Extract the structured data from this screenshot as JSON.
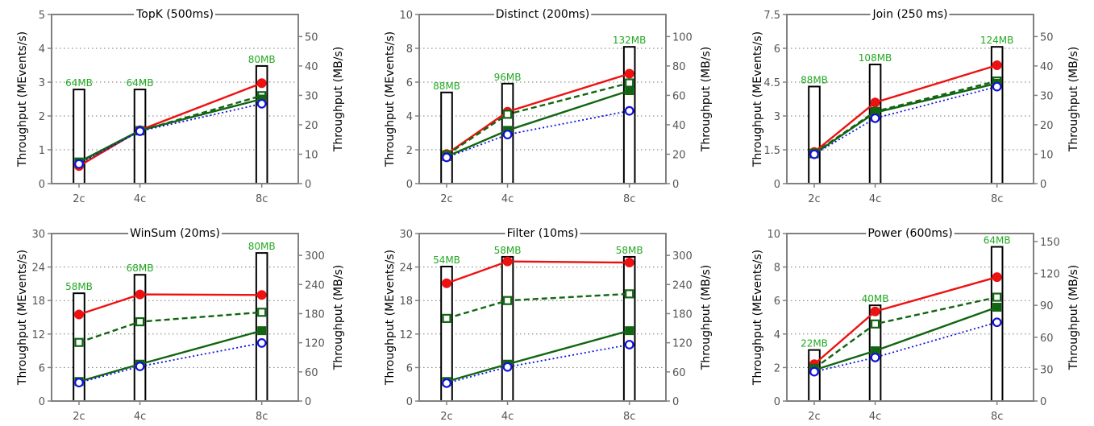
{
  "chart_data": [
    {
      "type": "bar+line",
      "title": "TopK (500ms)",
      "categories": [
        "2c",
        "4c",
        "8c"
      ],
      "x": [
        2,
        4,
        8
      ],
      "ylabel": "Throughput (MEvents/s)",
      "y2label": "Throughput (MB/s)",
      "ylim": [
        0,
        5
      ],
      "yticks": [
        0,
        1,
        2,
        3,
        4,
        5
      ],
      "y2lim": [
        0,
        57.5
      ],
      "y2ticks": [
        0,
        10,
        20,
        30,
        40,
        50
      ],
      "bars": [
        32,
        32,
        40
      ],
      "bar_labels": [
        "64MB",
        "64MB",
        "80MB"
      ],
      "series": [
        {
          "values": [
            0.52,
            1.58,
            2.97
          ],
          "color": "#ee1111",
          "marker": "filled-circle",
          "line": "solid"
        },
        {
          "values": [
            0.62,
            1.56,
            2.6
          ],
          "color": "#116611",
          "marker": "open-square",
          "line": "dashed"
        },
        {
          "values": [
            0.64,
            1.57,
            2.5
          ],
          "color": "#116611",
          "marker": "filled-square",
          "line": "solid"
        },
        {
          "values": [
            0.58,
            1.55,
            2.36
          ],
          "color": "#1111dd",
          "marker": "open-circle",
          "line": "dotted"
        }
      ]
    },
    {
      "type": "bar+line",
      "title": "Distinct (200ms)",
      "categories": [
        "2c",
        "4c",
        "8c"
      ],
      "x": [
        2,
        4,
        8
      ],
      "ylabel": "Throughput (MEvents/s)",
      "y2label": "Throughput (MB/s)",
      "ylim": [
        0,
        10
      ],
      "yticks": [
        0,
        2,
        4,
        6,
        8,
        10
      ],
      "y2lim": [
        0,
        115
      ],
      "y2ticks": [
        0,
        20,
        40,
        60,
        80,
        100
      ],
      "bars": [
        62,
        68,
        93
      ],
      "bar_labels": [
        "88MB",
        "96MB",
        "132MB"
      ],
      "series": [
        {
          "values": [
            1.75,
            4.25,
            6.5
          ],
          "color": "#ee1111",
          "marker": "filled-circle",
          "line": "solid"
        },
        {
          "values": [
            1.7,
            4.1,
            5.95
          ],
          "color": "#116611",
          "marker": "open-square",
          "line": "dashed"
        },
        {
          "values": [
            1.6,
            3.15,
            5.5
          ],
          "color": "#116611",
          "marker": "filled-square",
          "line": "solid"
        },
        {
          "values": [
            1.55,
            2.9,
            4.3
          ],
          "color": "#1111dd",
          "marker": "open-circle",
          "line": "dotted"
        }
      ]
    },
    {
      "type": "bar+line",
      "title": "Join (250 ms)",
      "categories": [
        "2c",
        "4c",
        "8c"
      ],
      "x": [
        2,
        4,
        8
      ],
      "ylabel": "Throughput (MEvents/s)",
      "y2label": "Throughput (MB/s)",
      "ylim": [
        0,
        7.5
      ],
      "yticks": [
        "0",
        "1.5",
        "3",
        "4.5",
        "6",
        "7.5"
      ],
      "y2lim": [
        0,
        57.5
      ],
      "y2ticks": [
        0,
        10,
        20,
        30,
        40,
        50
      ],
      "bars": [
        33,
        40.5,
        46.5
      ],
      "bar_labels": [
        "88MB",
        "108MB",
        "124MB"
      ],
      "series": [
        {
          "values": [
            1.4,
            3.6,
            5.25
          ],
          "color": "#ee1111",
          "marker": "filled-circle",
          "line": "solid"
        },
        {
          "values": [
            1.35,
            3.2,
            4.55
          ],
          "color": "#116611",
          "marker": "open-square",
          "line": "dashed"
        },
        {
          "values": [
            1.32,
            3.15,
            4.45
          ],
          "color": "#116611",
          "marker": "filled-square",
          "line": "solid"
        },
        {
          "values": [
            1.3,
            2.9,
            4.3
          ],
          "color": "#1111dd",
          "marker": "open-circle",
          "line": "dotted"
        }
      ]
    },
    {
      "type": "bar+line",
      "title": "WinSum (20ms)",
      "categories": [
        "2c",
        "4c",
        "8c"
      ],
      "x": [
        2,
        4,
        8
      ],
      "ylabel": "Throughput (MEvents/s)",
      "y2label": "Throughput (MB/s)",
      "ylim": [
        0,
        30
      ],
      "yticks": [
        0,
        6,
        12,
        18,
        24,
        30
      ],
      "y2lim": [
        0,
        345
      ],
      "y2ticks": [
        0,
        60,
        120,
        180,
        240,
        300
      ],
      "bars": [
        222,
        260,
        305
      ],
      "bar_labels": [
        "58MB",
        "68MB",
        "80MB"
      ],
      "series": [
        {
          "values": [
            15.5,
            19.1,
            19.0
          ],
          "color": "#ee1111",
          "marker": "filled-circle",
          "line": "solid"
        },
        {
          "values": [
            10.5,
            14.2,
            15.9
          ],
          "color": "#116611",
          "marker": "open-square",
          "line": "dashed"
        },
        {
          "values": [
            3.5,
            6.6,
            12.6
          ],
          "color": "#116611",
          "marker": "filled-square",
          "line": "solid"
        },
        {
          "values": [
            3.3,
            6.2,
            10.4
          ],
          "color": "#1111dd",
          "marker": "open-circle",
          "line": "dotted"
        }
      ]
    },
    {
      "type": "bar+line",
      "title": "Filter (10ms)",
      "categories": [
        "2c",
        "4c",
        "8c"
      ],
      "x": [
        2,
        4,
        8
      ],
      "ylabel": "Throughput (MEvents/s)",
      "y2label": "Throughput (MB/s)",
      "ylim": [
        0,
        30
      ],
      "yticks": [
        0,
        6,
        12,
        18,
        24,
        30
      ],
      "y2lim": [
        0,
        345
      ],
      "y2ticks": [
        0,
        60,
        120,
        180,
        240,
        300
      ],
      "bars": [
        277,
        297,
        297
      ],
      "bar_labels": [
        "54MB",
        "58MB",
        "58MB"
      ],
      "series": [
        {
          "values": [
            21.1,
            25.0,
            24.8
          ],
          "color": "#ee1111",
          "marker": "filled-circle",
          "line": "solid"
        },
        {
          "values": [
            14.8,
            18.0,
            19.2
          ],
          "color": "#116611",
          "marker": "open-square",
          "line": "dashed"
        },
        {
          "values": [
            3.5,
            6.6,
            12.6
          ],
          "color": "#116611",
          "marker": "filled-square",
          "line": "solid"
        },
        {
          "values": [
            3.2,
            6.1,
            10.1
          ],
          "color": "#1111dd",
          "marker": "open-circle",
          "line": "dotted"
        }
      ]
    },
    {
      "type": "bar+line",
      "title": "Power (600ms)",
      "categories": [
        "2c",
        "4c",
        "8c"
      ],
      "x": [
        2,
        4,
        8
      ],
      "ylabel": "Throughput (MEvents/s)",
      "y2label": "Throughput (MB/s)",
      "ylim": [
        0,
        10
      ],
      "yticks": [
        0,
        2,
        4,
        6,
        8,
        10
      ],
      "y2lim": [
        0,
        157.5
      ],
      "y2ticks": [
        0,
        30,
        60,
        90,
        120,
        150
      ],
      "bars": [
        48,
        90,
        145
      ],
      "bar_labels": [
        "22MB",
        "40MB",
        "64MB"
      ],
      "series": [
        {
          "values": [
            2.2,
            5.35,
            7.4
          ],
          "color": "#ee1111",
          "marker": "filled-circle",
          "line": "solid"
        },
        {
          "values": [
            1.95,
            4.6,
            6.2
          ],
          "color": "#116611",
          "marker": "open-square",
          "line": "dashed"
        },
        {
          "values": [
            1.85,
            3.0,
            5.6
          ],
          "color": "#116611",
          "marker": "filled-square",
          "line": "solid"
        },
        {
          "values": [
            1.75,
            2.6,
            4.7
          ],
          "color": "#1111dd",
          "marker": "open-circle",
          "line": "dotted"
        }
      ]
    }
  ]
}
